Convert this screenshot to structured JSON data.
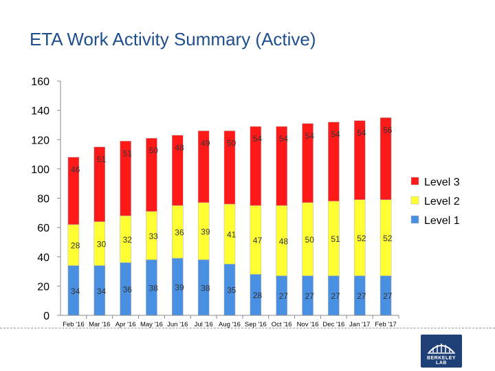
{
  "title": "ETA Work Activity Summary (Active)",
  "logo_text": "BERKELEY LAB",
  "colors": {
    "level1": "#4a90e2",
    "level2": "#ffff33",
    "level3": "#ff1a1a"
  },
  "chart_data": {
    "type": "bar",
    "stacked": true,
    "categories": [
      "Feb '16",
      "Mar '16",
      "Apr '16",
      "May '16",
      "Jun '16",
      "Jul '16",
      "Aug '16",
      "Sep '16",
      "Oct '16",
      "Nov '16",
      "Dec '16",
      "Jan '17",
      "Feb '17"
    ],
    "series": [
      {
        "name": "Level 1",
        "color": "#4a90e2",
        "values": [
          34,
          34,
          36,
          38,
          39,
          38,
          35,
          28,
          27,
          27,
          27,
          27,
          27
        ]
      },
      {
        "name": "Level 2",
        "color": "#ffff33",
        "values": [
          28,
          30,
          32,
          33,
          36,
          39,
          41,
          47,
          48,
          50,
          51,
          52,
          52
        ]
      },
      {
        "name": "Level 3",
        "color": "#ff1a1a",
        "values": [
          46,
          51,
          51,
          50,
          48,
          49,
          50,
          54,
          54,
          54,
          54,
          54,
          56
        ]
      }
    ],
    "ylim": [
      0,
      160
    ],
    "yticks": [
      0,
      20,
      40,
      60,
      80,
      100,
      120,
      140,
      160
    ],
    "grid": false,
    "legend_position": "right"
  }
}
